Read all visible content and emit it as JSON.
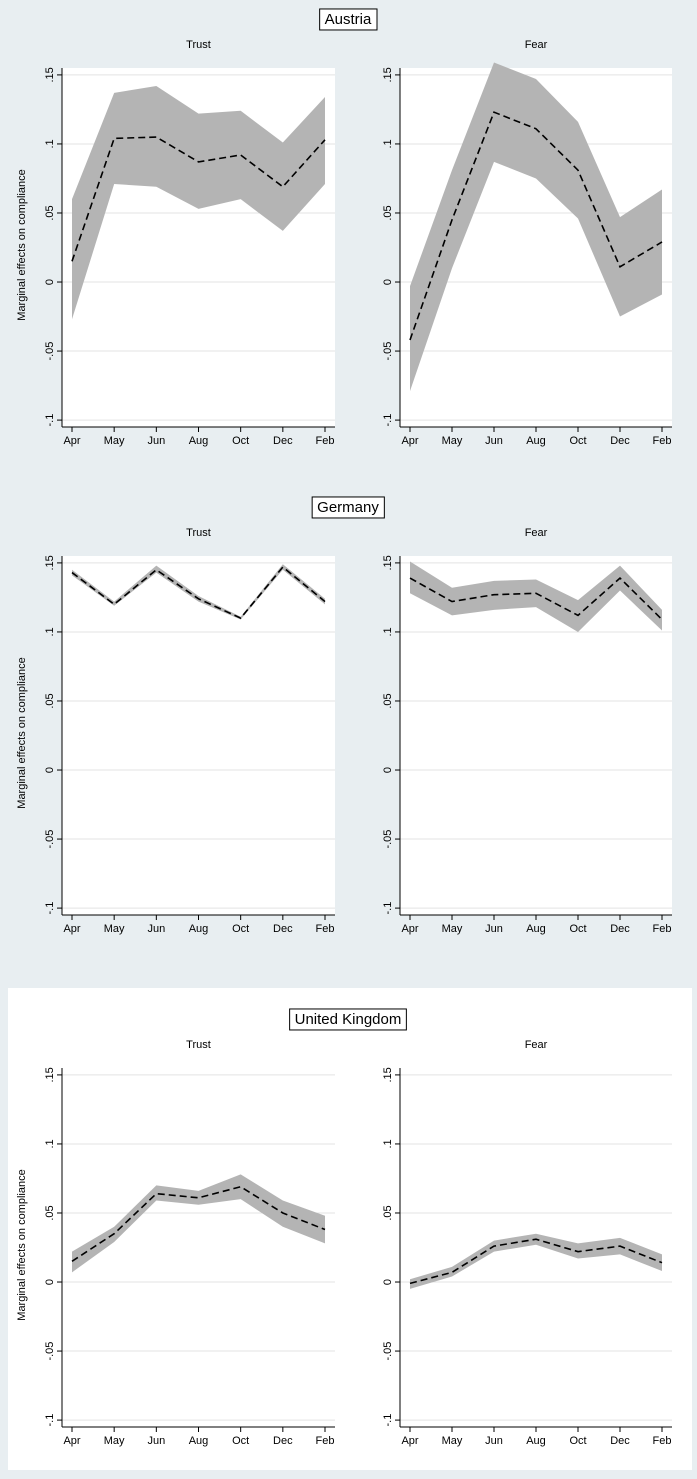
{
  "chart_data": [
    {
      "title": "Austria",
      "ylabel": "Marginal effects on compliance",
      "panels": [
        {
          "type": "line",
          "title": "Trust",
          "categories": [
            "Apr",
            "May",
            "Jun",
            "Aug",
            "Oct",
            "Dec",
            "Feb"
          ],
          "values": [
            0.015,
            0.104,
            0.105,
            0.087,
            0.092,
            0.069,
            0.103
          ],
          "lower": [
            -0.027,
            0.071,
            0.069,
            0.053,
            0.06,
            0.037,
            0.071
          ],
          "upper": [
            0.06,
            0.137,
            0.142,
            0.122,
            0.124,
            0.101,
            0.134
          ],
          "color": "#000000",
          "band_color": "#b4b4b4",
          "grid": true,
          "ylim": [
            -0.105,
            0.155
          ],
          "yticks": [
            {
              "value": -0.1,
              "label": "-.1"
            },
            {
              "value": -0.05,
              "label": "-.05"
            },
            {
              "value": 0,
              "label": "0"
            },
            {
              "value": 0.05,
              "label": ".05"
            },
            {
              "value": 0.1,
              "label": ".1"
            },
            {
              "value": 0.15,
              "label": ".15"
            }
          ]
        },
        {
          "type": "line",
          "title": "Fear",
          "categories": [
            "Apr",
            "May",
            "Jun",
            "Aug",
            "Oct",
            "Dec",
            "Feb"
          ],
          "values": [
            -0.042,
            0.045,
            0.123,
            0.111,
            0.081,
            0.011,
            0.029
          ],
          "lower": [
            -0.079,
            0.01,
            0.087,
            0.075,
            0.046,
            -0.025,
            -0.009
          ],
          "upper": [
            -0.003,
            0.081,
            0.159,
            0.147,
            0.116,
            0.047,
            0.067
          ],
          "color": "#000000",
          "band_color": "#b4b4b4",
          "grid": true,
          "ylim": [
            -0.105,
            0.155
          ],
          "yticks": [
            {
              "value": -0.1,
              "label": "-.1"
            },
            {
              "value": -0.05,
              "label": "-.05"
            },
            {
              "value": 0,
              "label": "0"
            },
            {
              "value": 0.05,
              "label": ".05"
            },
            {
              "value": 0.1,
              "label": ".1"
            },
            {
              "value": 0.15,
              "label": ".15"
            }
          ]
        }
      ]
    },
    {
      "title": "Germany",
      "ylabel": "Marginal effects on compliance",
      "panels": [
        {
          "type": "line",
          "title": "Trust",
          "categories": [
            "Apr",
            "May",
            "Jun",
            "Aug",
            "Oct",
            "Dec",
            "Feb"
          ],
          "values": [
            0.143,
            0.12,
            0.145,
            0.124,
            0.11,
            0.147,
            0.122
          ],
          "lower": [
            0.141,
            0.119,
            0.143,
            0.122,
            0.109,
            0.145,
            0.12
          ],
          "upper": [
            0.145,
            0.122,
            0.148,
            0.126,
            0.111,
            0.149,
            0.124
          ],
          "color": "#000000",
          "band_color": "#b4b4b4",
          "grid": true,
          "ylim": [
            -0.105,
            0.155
          ],
          "yticks": [
            {
              "value": -0.1,
              "label": "-.1"
            },
            {
              "value": -0.05,
              "label": "-.05"
            },
            {
              "value": 0,
              "label": "0"
            },
            {
              "value": 0.05,
              "label": ".05"
            },
            {
              "value": 0.1,
              "label": ".1"
            },
            {
              "value": 0.15,
              "label": ".15"
            }
          ]
        },
        {
          "type": "line",
          "title": "Fear",
          "categories": [
            "Apr",
            "May",
            "Jun",
            "Aug",
            "Oct",
            "Dec",
            "Feb"
          ],
          "values": [
            0.139,
            0.122,
            0.127,
            0.128,
            0.112,
            0.139,
            0.109
          ],
          "lower": [
            0.128,
            0.112,
            0.116,
            0.118,
            0.1,
            0.13,
            0.101
          ],
          "upper": [
            0.151,
            0.132,
            0.137,
            0.138,
            0.123,
            0.148,
            0.116
          ],
          "color": "#000000",
          "band_color": "#b4b4b4",
          "grid": true,
          "ylim": [
            -0.105,
            0.155
          ],
          "yticks": [
            {
              "value": -0.1,
              "label": "-.1"
            },
            {
              "value": -0.05,
              "label": "-.05"
            },
            {
              "value": 0,
              "label": "0"
            },
            {
              "value": 0.05,
              "label": ".05"
            },
            {
              "value": 0.1,
              "label": ".1"
            },
            {
              "value": 0.15,
              "label": ".15"
            }
          ]
        }
      ]
    },
    {
      "title": "United Kingdom",
      "ylabel": "Marginal effects on compliance",
      "panels": [
        {
          "type": "line",
          "title": "Trust",
          "categories": [
            "Apr",
            "May",
            "Jun",
            "Aug",
            "Oct",
            "Dec",
            "Feb"
          ],
          "values": [
            0.015,
            0.035,
            0.064,
            0.061,
            0.069,
            0.05,
            0.038
          ],
          "lower": [
            0.007,
            0.029,
            0.059,
            0.056,
            0.06,
            0.04,
            0.028
          ],
          "upper": [
            0.022,
            0.04,
            0.07,
            0.066,
            0.078,
            0.059,
            0.048
          ],
          "color": "#000000",
          "band_color": "#b4b4b4",
          "grid": true,
          "ylim": [
            -0.105,
            0.155
          ],
          "yticks": [
            {
              "value": -0.1,
              "label": "-.1"
            },
            {
              "value": -0.05,
              "label": "-.05"
            },
            {
              "value": 0,
              "label": "0"
            },
            {
              "value": 0.05,
              "label": ".05"
            },
            {
              "value": 0.1,
              "label": ".1"
            },
            {
              "value": 0.15,
              "label": ".15"
            }
          ]
        },
        {
          "type": "line",
          "title": "Fear",
          "categories": [
            "Apr",
            "May",
            "Jun",
            "Aug",
            "Oct",
            "Dec",
            "Feb"
          ],
          "values": [
            -0.001,
            0.007,
            0.026,
            0.031,
            0.022,
            0.026,
            0.014
          ],
          "lower": [
            -0.005,
            0.004,
            0.022,
            0.027,
            0.017,
            0.02,
            0.008
          ],
          "upper": [
            0.002,
            0.011,
            0.03,
            0.035,
            0.028,
            0.032,
            0.02
          ],
          "color": "#000000",
          "band_color": "#b4b4b4",
          "grid": true,
          "ylim": [
            -0.105,
            0.155
          ],
          "yticks": [
            {
              "value": -0.1,
              "label": "-.1"
            },
            {
              "value": -0.05,
              "label": "-.05"
            },
            {
              "value": 0,
              "label": "0"
            },
            {
              "value": 0.05,
              "label": ".05"
            },
            {
              "value": 0.1,
              "label": ".1"
            },
            {
              "value": 0.15,
              "label": ".15"
            }
          ]
        }
      ]
    }
  ]
}
